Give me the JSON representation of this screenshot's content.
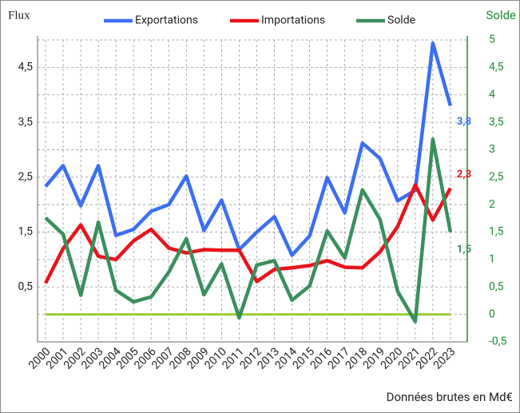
{
  "chart_data": {
    "type": "line",
    "y_title": "Flux",
    "y2_title": "Solde",
    "footer": "Données brutes en Md€",
    "categories": [
      "2000",
      "2001",
      "2002",
      "2003",
      "2004",
      "2005",
      "2006",
      "2007",
      "2008",
      "2009",
      "2010",
      "2011",
      "2012",
      "2013",
      "2014",
      "2015",
      "2016",
      "2017",
      "2018",
      "2019",
      "2020",
      "2021",
      "2022",
      "2023"
    ],
    "series": [
      {
        "name": "Exportations",
        "color": "#3b6ff2",
        "axis": "y",
        "values": [
          2.33,
          2.71,
          1.98,
          2.71,
          1.44,
          1.55,
          1.88,
          2.0,
          2.52,
          1.53,
          2.08,
          1.18,
          1.5,
          1.78,
          1.08,
          1.43,
          2.49,
          1.85,
          3.12,
          2.84,
          2.07,
          2.26,
          4.94,
          3.8
        ],
        "value_labels": [
          null,
          null,
          null,
          null,
          null,
          null,
          null,
          null,
          null,
          null,
          null,
          null,
          null,
          null,
          null,
          null,
          null,
          null,
          null,
          null,
          null,
          null,
          null,
          "3,8"
        ]
      },
      {
        "name": "Importations",
        "color": "#e8141c",
        "axis": "y",
        "values": [
          0.57,
          1.2,
          1.63,
          1.06,
          1.0,
          1.34,
          1.55,
          1.21,
          1.12,
          1.18,
          1.17,
          1.17,
          0.6,
          0.82,
          0.85,
          0.89,
          0.98,
          0.86,
          0.85,
          1.14,
          1.6,
          2.36,
          1.72,
          2.3
        ],
        "value_labels": [
          null,
          null,
          null,
          null,
          null,
          null,
          null,
          null,
          null,
          null,
          null,
          null,
          null,
          null,
          null,
          null,
          null,
          null,
          null,
          null,
          null,
          null,
          null,
          "2,3"
        ]
      },
      {
        "name": "Solde",
        "color": "#3a8f5c",
        "axis": "y2",
        "values": [
          1.76,
          1.46,
          0.35,
          1.68,
          0.44,
          0.23,
          0.32,
          0.77,
          1.38,
          0.36,
          0.92,
          -0.06,
          0.9,
          0.98,
          0.26,
          0.52,
          1.52,
          1.03,
          2.27,
          1.73,
          0.42,
          -0.13,
          3.19,
          1.5
        ],
        "value_labels": [
          null,
          null,
          null,
          null,
          null,
          null,
          null,
          null,
          null,
          null,
          null,
          null,
          null,
          null,
          null,
          null,
          null,
          null,
          null,
          null,
          null,
          null,
          null,
          "1,5"
        ]
      }
    ],
    "ylim": [
      -0.5,
      5
    ],
    "yticks": [
      {
        "value": 0.5,
        "label": "0,5"
      },
      {
        "value": 1.5,
        "label": "1,5"
      },
      {
        "value": 2.5,
        "label": "2,5"
      },
      {
        "value": 3.5,
        "label": "3,5"
      },
      {
        "value": 4.5,
        "label": "4,5"
      }
    ],
    "y2lim": [
      -0.5,
      5
    ],
    "y2ticks": [
      {
        "value": -0.5,
        "label": "-0,5"
      },
      0,
      {
        "value": 0.5,
        "label": "0,5"
      },
      1,
      {
        "value": 1.5,
        "label": "1,5"
      },
      2,
      {
        "value": 2.5,
        "label": "2,5"
      },
      3,
      {
        "value": 3.5,
        "label": "3,5"
      },
      4,
      {
        "value": 4.5,
        "label": "4,5"
      },
      5
    ],
    "zero_line_color": "#9acd32",
    "grid": true,
    "legend": "top"
  }
}
